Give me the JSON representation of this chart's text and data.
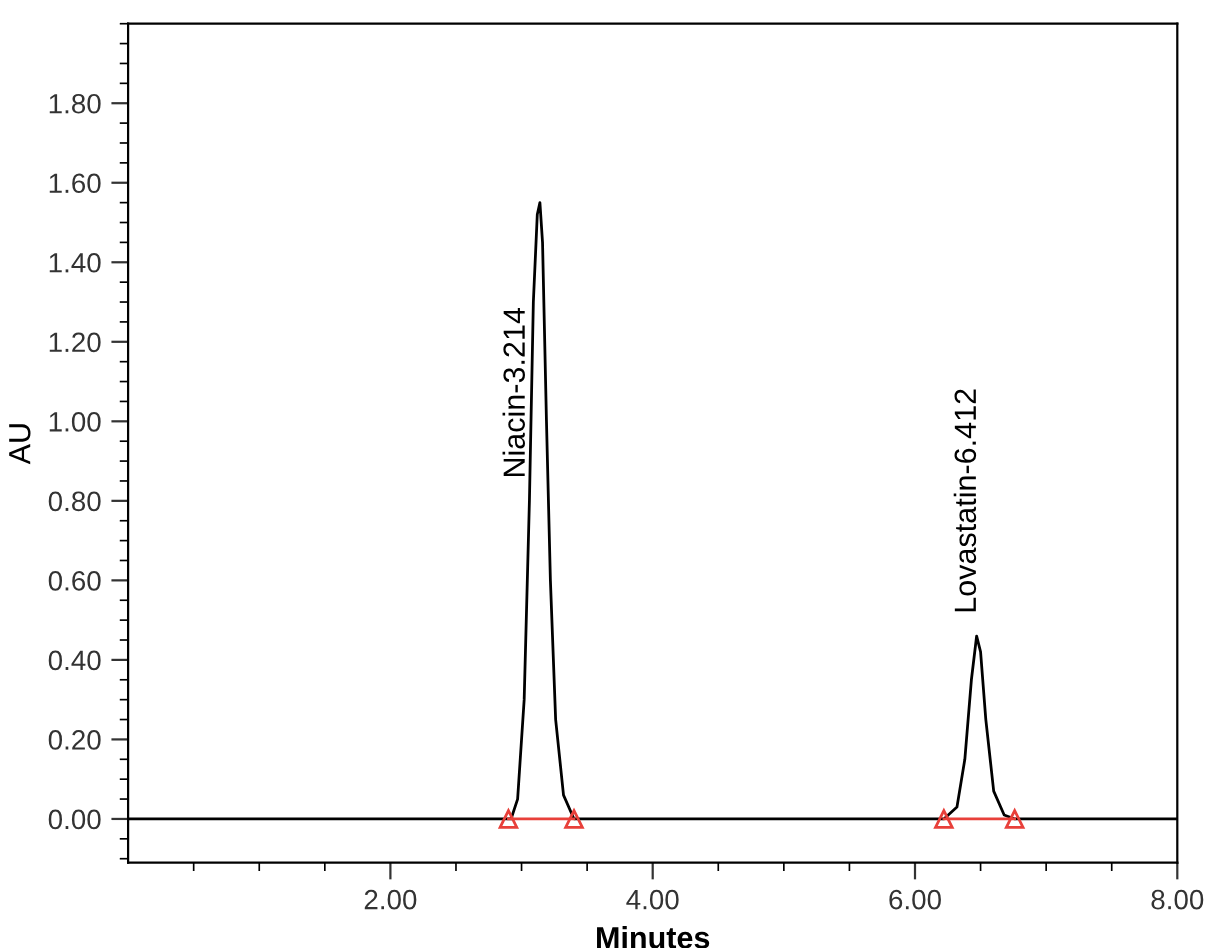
{
  "chart_data": {
    "type": "line",
    "xlabel": "Minutes",
    "ylabel": "AU",
    "xlim": [
      0,
      8
    ],
    "ylim": [
      -0.11,
      2.0
    ],
    "xticks": [
      {
        "value": 0.5,
        "label": null
      },
      {
        "value": 1.0,
        "label": null
      },
      {
        "value": 1.5,
        "label": null
      },
      {
        "value": 2,
        "label": "2.00"
      },
      {
        "value": 2.5,
        "label": null
      },
      {
        "value": 3.0,
        "label": null
      },
      {
        "value": 3.5,
        "label": null
      },
      {
        "value": 4,
        "label": "4.00"
      },
      {
        "value": 4.5,
        "label": null
      },
      {
        "value": 5.0,
        "label": null
      },
      {
        "value": 5.5,
        "label": null
      },
      {
        "value": 6,
        "label": "6.00"
      },
      {
        "value": 6.5,
        "label": null
      },
      {
        "value": 7.0,
        "label": null
      },
      {
        "value": 7.5,
        "label": null
      },
      {
        "value": 8,
        "label": "8.00"
      }
    ],
    "yticks": [
      {
        "value": -0.1,
        "label": null
      },
      {
        "value": -0.05,
        "label": null
      },
      {
        "value": 0,
        "label": "0.00"
      },
      {
        "value": 0.05,
        "label": null
      },
      {
        "value": 0.1,
        "label": null
      },
      {
        "value": 0.15,
        "label": null
      },
      {
        "value": 0.2,
        "label": "0.20"
      },
      {
        "value": 0.25,
        "label": null
      },
      {
        "value": 0.3,
        "label": null
      },
      {
        "value": 0.35,
        "label": null
      },
      {
        "value": 0.4,
        "label": "0.40"
      },
      {
        "value": 0.45,
        "label": null
      },
      {
        "value": 0.5,
        "label": null
      },
      {
        "value": 0.55,
        "label": null
      },
      {
        "value": 0.6,
        "label": "0.60"
      },
      {
        "value": 0.65,
        "label": null
      },
      {
        "value": 0.7,
        "label": null
      },
      {
        "value": 0.75,
        "label": null
      },
      {
        "value": 0.8,
        "label": "0.80"
      },
      {
        "value": 0.85,
        "label": null
      },
      {
        "value": 0.9,
        "label": null
      },
      {
        "value": 0.95,
        "label": null
      },
      {
        "value": 1.0,
        "label": "1.00"
      },
      {
        "value": 1.05,
        "label": null
      },
      {
        "value": 1.1,
        "label": null
      },
      {
        "value": 1.15,
        "label": null
      },
      {
        "value": 1.2,
        "label": "1.20"
      },
      {
        "value": 1.25,
        "label": null
      },
      {
        "value": 1.3,
        "label": null
      },
      {
        "value": 1.35,
        "label": null
      },
      {
        "value": 1.4,
        "label": "1.40"
      },
      {
        "value": 1.45,
        "label": null
      },
      {
        "value": 1.5,
        "label": null
      },
      {
        "value": 1.55,
        "label": null
      },
      {
        "value": 1.6,
        "label": "1.60"
      },
      {
        "value": 1.65,
        "label": null
      },
      {
        "value": 1.7,
        "label": null
      },
      {
        "value": 1.75,
        "label": null
      },
      {
        "value": 1.8,
        "label": "1.80"
      },
      {
        "value": 1.85,
        "label": null
      },
      {
        "value": 1.9,
        "label": null
      },
      {
        "value": 1.95,
        "label": null
      },
      {
        "value": 2.0,
        "label": null
      }
    ],
    "grid": false,
    "legend": false,
    "series": [
      {
        "color": "#000000",
        "marker": "none",
        "x": [
          0,
          2.8,
          2.92,
          2.97,
          3.02,
          3.06,
          3.09,
          3.12,
          3.14,
          3.16,
          3.19,
          3.22,
          3.26,
          3.32,
          3.4,
          6.22,
          6.32,
          6.38,
          6.43,
          6.47,
          6.5,
          6.54,
          6.6,
          6.68,
          6.76,
          8
        ],
        "values": [
          0,
          0,
          0,
          0.05,
          0.3,
          0.8,
          1.3,
          1.52,
          1.55,
          1.45,
          1.0,
          0.6,
          0.25,
          0.06,
          0,
          0,
          0.03,
          0.15,
          0.35,
          0.46,
          0.42,
          0.25,
          0.07,
          0.01,
          0,
          0
        ]
      },
      {
        "color": "#e8403a",
        "marker": "triangle",
        "x": [
          2.9,
          3.4
        ],
        "values": [
          0,
          0
        ]
      },
      {
        "color": "#e8403a",
        "marker": "triangle",
        "x": [
          6.22,
          6.76
        ],
        "values": [
          0,
          0
        ]
      }
    ],
    "annotations": [
      {
        "text": "Niacin-3.214",
        "x": 3.03,
        "y": 0.8
      },
      {
        "text": "Lovastatin-6.412",
        "x": 6.47,
        "y": 0.46
      }
    ]
  }
}
